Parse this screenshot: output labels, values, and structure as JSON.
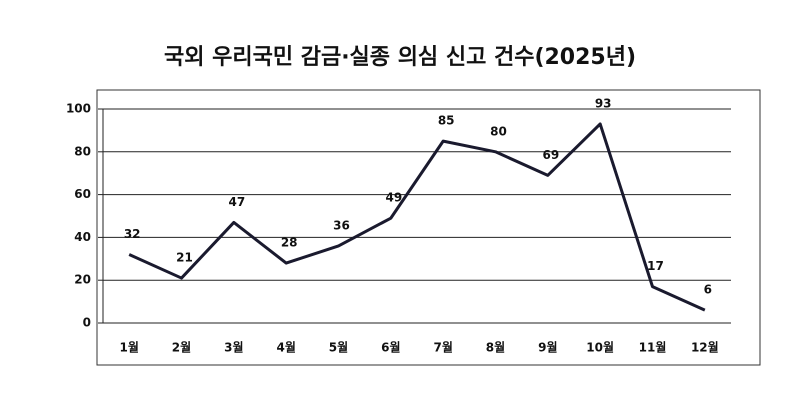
{
  "chart_data": {
    "type": "line",
    "title": "국외 우리국민 감금·실종 의심 신고 건수(2025년)",
    "categories": [
      "1월",
      "2월",
      "3월",
      "4월",
      "5월",
      "6월",
      "7월",
      "8월",
      "9월",
      "10월",
      "11월",
      "12월"
    ],
    "values": [
      32,
      21,
      47,
      28,
      36,
      49,
      85,
      80,
      69,
      93,
      17,
      6
    ],
    "color": "#1a1a2e",
    "ylim": [
      0,
      100
    ],
    "yticks": [
      0,
      20,
      40,
      60,
      80,
      100
    ],
    "grid": true
  }
}
